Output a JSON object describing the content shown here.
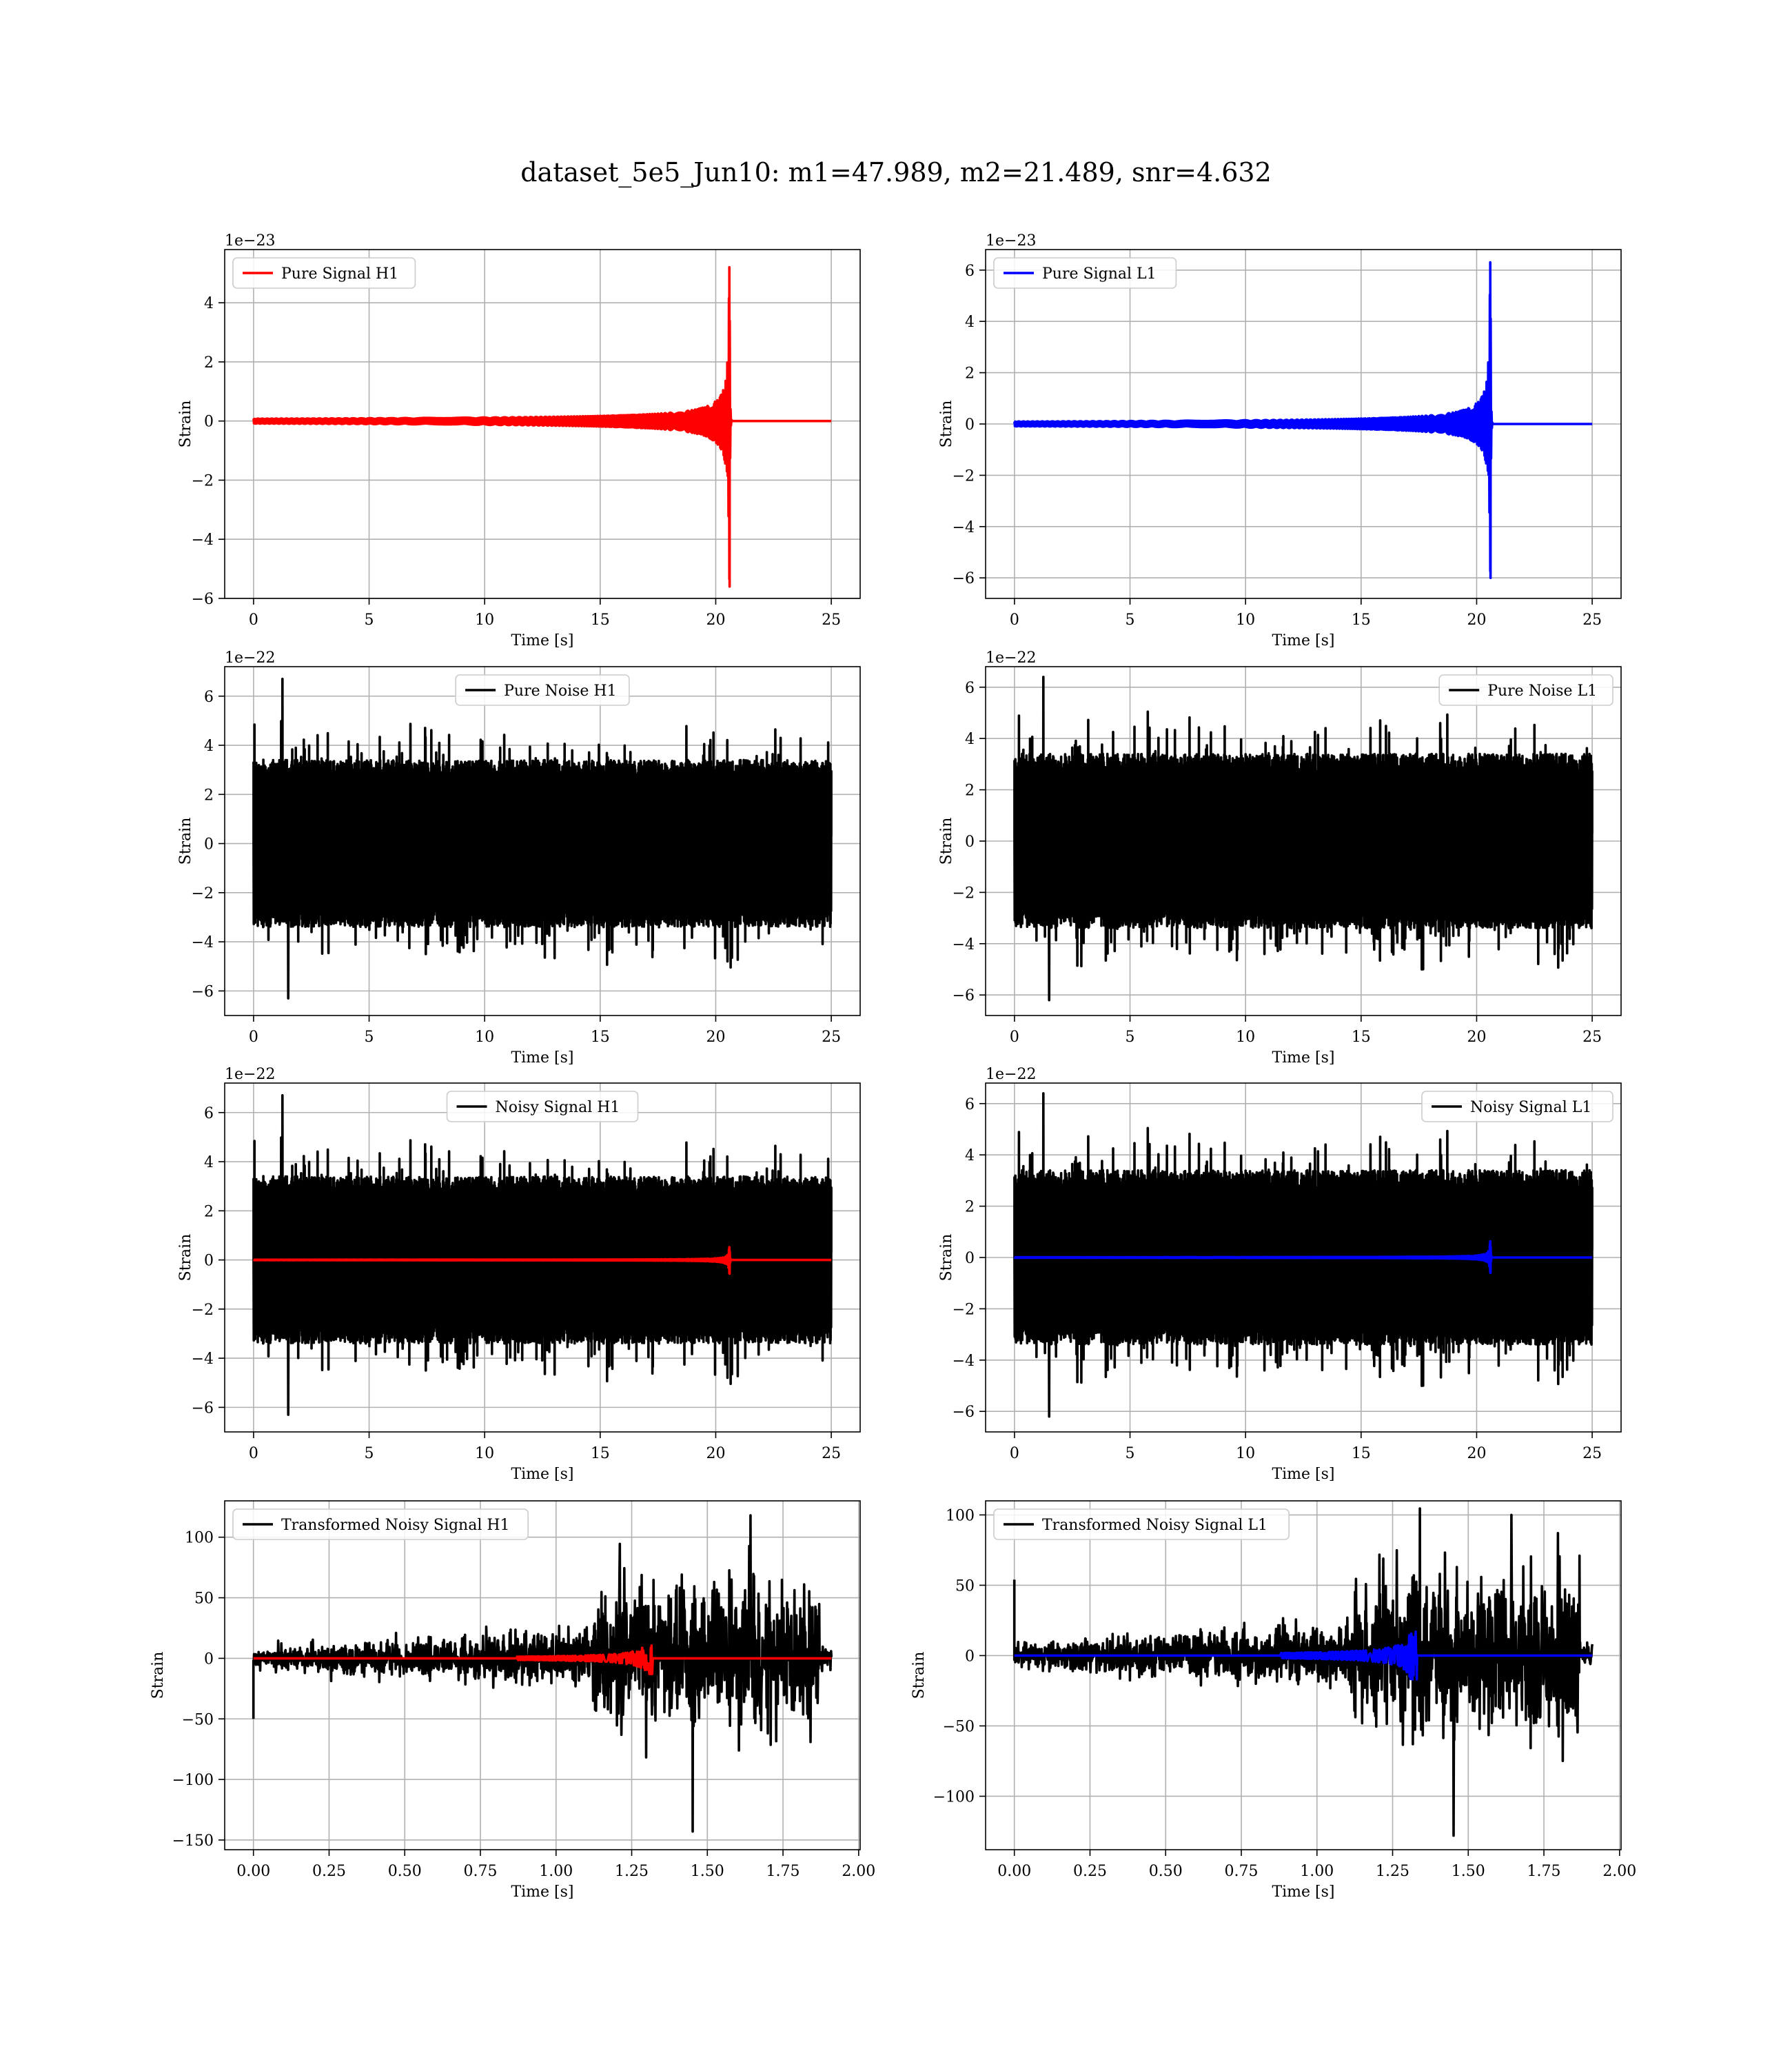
{
  "figure": {
    "suptitle": "dataset_5e5_Jun10: m1=47.989, m2=21.489, snr=4.632"
  },
  "chart_data": [
    {
      "type": "line",
      "xlabel": "Time [s]",
      "ylabel": "Strain",
      "offset_text": "1e−23",
      "xlim": [
        -1.25,
        26.25
      ],
      "ylim": [
        -6.0,
        5.8
      ],
      "xticks": [
        0,
        5,
        10,
        15,
        20,
        25
      ],
      "xtick_labels": [
        "0",
        "5",
        "10",
        "15",
        "20",
        "25"
      ],
      "yticks": [
        -6,
        -4,
        -2,
        0,
        2,
        4
      ],
      "ytick_labels": [
        "−6",
        "−4",
        "−2",
        "0",
        "2",
        "4"
      ],
      "grid": true,
      "legend_position": "upper left",
      "series": [
        {
          "name": "Pure Signal H1",
          "color": "#ff0000",
          "kind": "chirp",
          "x_start": 0,
          "x_end": 25,
          "merger": 20.6,
          "peak_pos": 5.2,
          "peak_neg": -5.6
        }
      ]
    },
    {
      "type": "line",
      "xlabel": "Time [s]",
      "ylabel": "Strain",
      "offset_text": "1e−23",
      "xlim": [
        -1.25,
        26.25
      ],
      "ylim": [
        -6.8,
        6.8
      ],
      "xticks": [
        0,
        5,
        10,
        15,
        20,
        25
      ],
      "xtick_labels": [
        "0",
        "5",
        "10",
        "15",
        "20",
        "25"
      ],
      "yticks": [
        -6,
        -4,
        -2,
        0,
        2,
        4,
        6
      ],
      "ytick_labels": [
        "−6",
        "−4",
        "−2",
        "0",
        "2",
        "4",
        "6"
      ],
      "grid": true,
      "legend_position": "upper left",
      "series": [
        {
          "name": "Pure Signal L1",
          "color": "#0000ff",
          "kind": "chirp",
          "x_start": 0,
          "x_end": 25,
          "merger": 20.6,
          "peak_pos": 6.3,
          "peak_neg": -6.0
        }
      ]
    },
    {
      "type": "line",
      "xlabel": "Time [s]",
      "ylabel": "Strain",
      "offset_text": "1e−22",
      "xlim": [
        -1.25,
        26.25
      ],
      "ylim": [
        -7.0,
        7.2
      ],
      "xticks": [
        0,
        5,
        10,
        15,
        20,
        25
      ],
      "xtick_labels": [
        "0",
        "5",
        "10",
        "15",
        "20",
        "25"
      ],
      "yticks": [
        -6,
        -4,
        -2,
        0,
        2,
        4,
        6
      ],
      "ytick_labels": [
        "−6",
        "−4",
        "−2",
        "0",
        "2",
        "4",
        "6"
      ],
      "grid": true,
      "legend_position": "upper center",
      "series": [
        {
          "name": "Pure Noise H1",
          "color": "#000000",
          "kind": "noise",
          "x_start": 0,
          "x_end": 25,
          "band": 3.4,
          "max": 6.7,
          "min": -6.3,
          "seed": 11
        }
      ]
    },
    {
      "type": "line",
      "xlabel": "Time [s]",
      "ylabel": "Strain",
      "offset_text": "1e−22",
      "xlim": [
        -1.25,
        26.25
      ],
      "ylim": [
        -6.8,
        6.8
      ],
      "xticks": [
        0,
        5,
        10,
        15,
        20,
        25
      ],
      "xtick_labels": [
        "0",
        "5",
        "10",
        "15",
        "20",
        "25"
      ],
      "yticks": [
        -6,
        -4,
        -2,
        0,
        2,
        4,
        6
      ],
      "ytick_labels": [
        "−6",
        "−4",
        "−2",
        "0",
        "2",
        "4",
        "6"
      ],
      "grid": true,
      "legend_position": "upper right",
      "series": [
        {
          "name": "Pure Noise L1",
          "color": "#000000",
          "kind": "noise",
          "x_start": 0,
          "x_end": 25,
          "band": 3.4,
          "max": 6.4,
          "min": -6.2,
          "seed": 23
        }
      ]
    },
    {
      "type": "line",
      "xlabel": "Time [s]",
      "ylabel": "Strain",
      "offset_text": "1e−22",
      "xlim": [
        -1.25,
        26.25
      ],
      "ylim": [
        -7.0,
        7.2
      ],
      "xticks": [
        0,
        5,
        10,
        15,
        20,
        25
      ],
      "xtick_labels": [
        "0",
        "5",
        "10",
        "15",
        "20",
        "25"
      ],
      "yticks": [
        -6,
        -4,
        -2,
        0,
        2,
        4,
        6
      ],
      "ytick_labels": [
        "−6",
        "−4",
        "−2",
        "0",
        "2",
        "4",
        "6"
      ],
      "grid": true,
      "legend_position": "upper center",
      "series": [
        {
          "name": "Noisy Signal H1",
          "color": "#000000",
          "kind": "noise",
          "x_start": 0,
          "x_end": 25,
          "band": 3.4,
          "max": 6.7,
          "min": -6.3,
          "seed": 11
        },
        {
          "name": "",
          "color": "#ff0000",
          "kind": "chirp",
          "x_start": 0,
          "x_end": 25,
          "merger": 20.6,
          "peak_pos": 0.52,
          "peak_neg": -0.56
        }
      ]
    },
    {
      "type": "line",
      "xlabel": "Time [s]",
      "ylabel": "Strain",
      "offset_text": "1e−22",
      "xlim": [
        -1.25,
        26.25
      ],
      "ylim": [
        -6.8,
        6.8
      ],
      "xticks": [
        0,
        5,
        10,
        15,
        20,
        25
      ],
      "xtick_labels": [
        "0",
        "5",
        "10",
        "15",
        "20",
        "25"
      ],
      "yticks": [
        -6,
        -4,
        -2,
        0,
        2,
        4,
        6
      ],
      "ytick_labels": [
        "−6",
        "−4",
        "−2",
        "0",
        "2",
        "4",
        "6"
      ],
      "grid": true,
      "legend_position": "upper right",
      "series": [
        {
          "name": "Noisy Signal L1",
          "color": "#000000",
          "kind": "noise",
          "x_start": 0,
          "x_end": 25,
          "band": 3.4,
          "max": 6.4,
          "min": -6.2,
          "seed": 23
        },
        {
          "name": "",
          "color": "#0000ff",
          "kind": "chirp",
          "x_start": 0,
          "x_end": 25,
          "merger": 20.6,
          "peak_pos": 0.63,
          "peak_neg": -0.6
        }
      ]
    },
    {
      "type": "line",
      "xlabel": "Time [s]",
      "ylabel": "Strain",
      "offset_text": "",
      "xlim": [
        -0.095,
        2.005
      ],
      "ylim": [
        -158,
        130
      ],
      "xticks": [
        0.0,
        0.25,
        0.5,
        0.75,
        1.0,
        1.25,
        1.5,
        1.75,
        2.0
      ],
      "xtick_labels": [
        "0.00",
        "0.25",
        "0.50",
        "0.75",
        "1.00",
        "1.25",
        "1.50",
        "1.75",
        "2.00"
      ],
      "yticks": [
        -150,
        -100,
        -50,
        0,
        50,
        100
      ],
      "ytick_labels": [
        "−150",
        "−100",
        "−50",
        "0",
        "50",
        "100"
      ],
      "grid": true,
      "legend_position": "upper left",
      "series": [
        {
          "name": "Transformed Noisy Signal H1",
          "color": "#000000",
          "kind": "whitened",
          "x_start": 0,
          "x_end": 1.91,
          "seed": 5,
          "max": 118,
          "min": -143
        },
        {
          "name": "",
          "color": "#ff0000",
          "kind": "wchirp",
          "x_start": 0,
          "x_end": 1.91,
          "merger": 1.32,
          "peak": 13
        }
      ]
    },
    {
      "type": "line",
      "xlabel": "Time [s]",
      "ylabel": "Strain",
      "offset_text": "",
      "xlim": [
        -0.095,
        2.005
      ],
      "ylim": [
        -138,
        110
      ],
      "xticks": [
        0.0,
        0.25,
        0.5,
        0.75,
        1.0,
        1.25,
        1.5,
        1.75,
        2.0
      ],
      "xtick_labels": [
        "0.00",
        "0.25",
        "0.50",
        "0.75",
        "1.00",
        "1.25",
        "1.50",
        "1.75",
        "2.00"
      ],
      "yticks": [
        -100,
        -50,
        0,
        50,
        100
      ],
      "ytick_labels": [
        "−100",
        "−50",
        "0",
        "50",
        "100"
      ],
      "grid": true,
      "legend_position": "upper left",
      "series": [
        {
          "name": "Transformed Noisy Signal L1",
          "color": "#000000",
          "kind": "whitened",
          "x_start": 0,
          "x_end": 1.91,
          "seed": 9,
          "max": 100,
          "min": -128
        },
        {
          "name": "",
          "color": "#0000ff",
          "kind": "wchirp",
          "x_start": 0,
          "x_end": 1.91,
          "merger": 1.33,
          "peak": 17
        }
      ]
    }
  ]
}
